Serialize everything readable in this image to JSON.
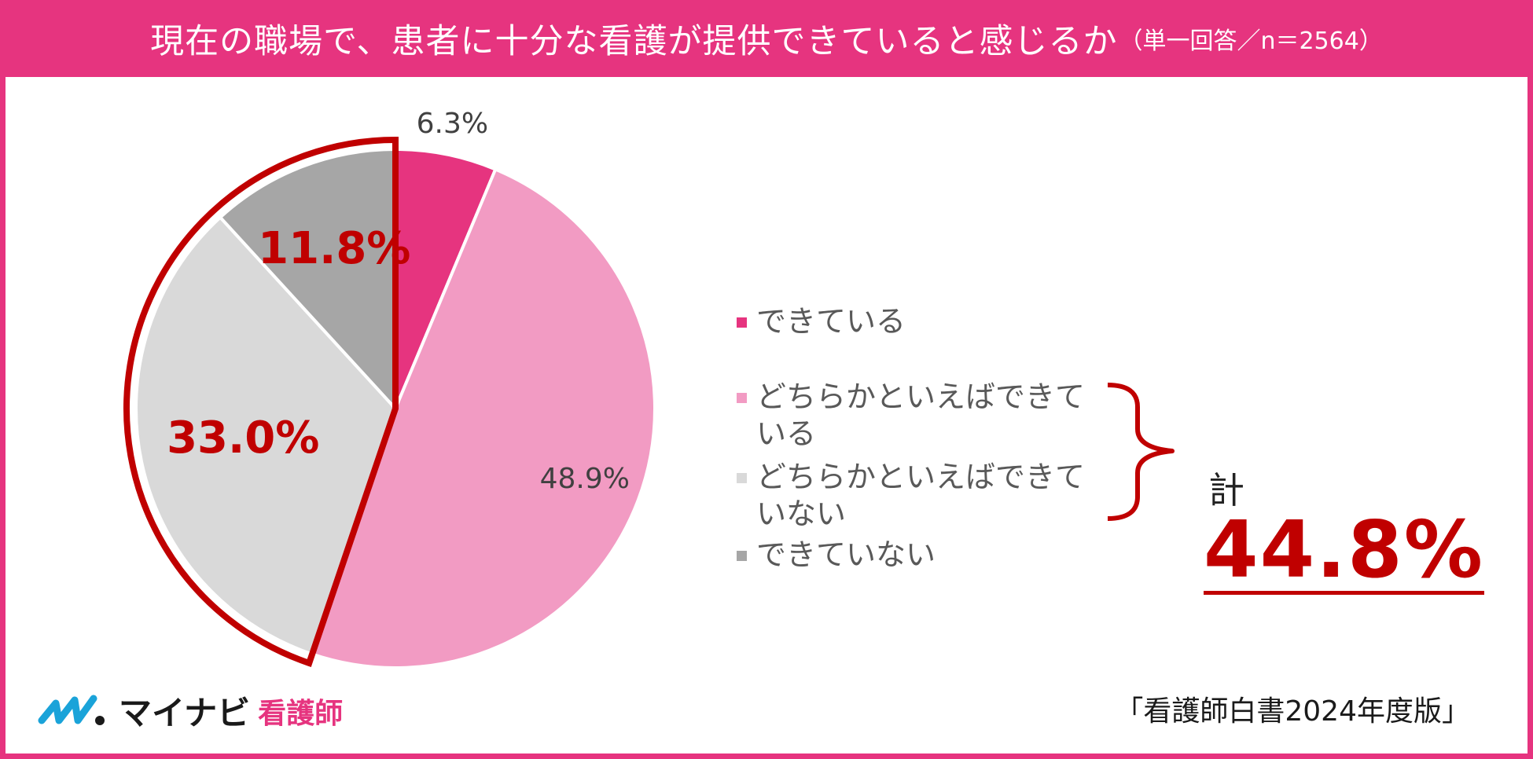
{
  "header": {
    "title": "現在の職場で、患者に十分な看護が提供できていると感じるか",
    "subtitle": "（単一回答／n＝2564）"
  },
  "chart_data": {
    "type": "pie",
    "categories": [
      "できている",
      "どちらかといえばできている",
      "どちらかといえばできていない",
      "できていない"
    ],
    "values": [
      6.3,
      48.9,
      33.0,
      11.8
    ],
    "data_labels": [
      "6.3%",
      "48.9%",
      "33.0%",
      "11.8%"
    ],
    "colors": [
      "#e6347f",
      "#f29bc3",
      "#d9d9d9",
      "#a6a6a6"
    ],
    "legend_position": "right",
    "highlighted": [
      "どちらかといえばできていない",
      "できていない"
    ],
    "highlight_color": "#c00000"
  },
  "legend": {
    "items": [
      {
        "label": "できている",
        "color": "#e6347f"
      },
      {
        "label": "どちらかといえばできている",
        "color": "#f29bc3"
      },
      {
        "label": "どちらかといえばできていない",
        "color": "#d9d9d9"
      },
      {
        "label": "できていない",
        "color": "#a6a6a6"
      }
    ]
  },
  "total": {
    "label": "計",
    "value": "44.8%"
  },
  "logo": {
    "brand": "マイナビ",
    "brand_sub": "看護師"
  },
  "source": "「看護師白書2024年度版」"
}
